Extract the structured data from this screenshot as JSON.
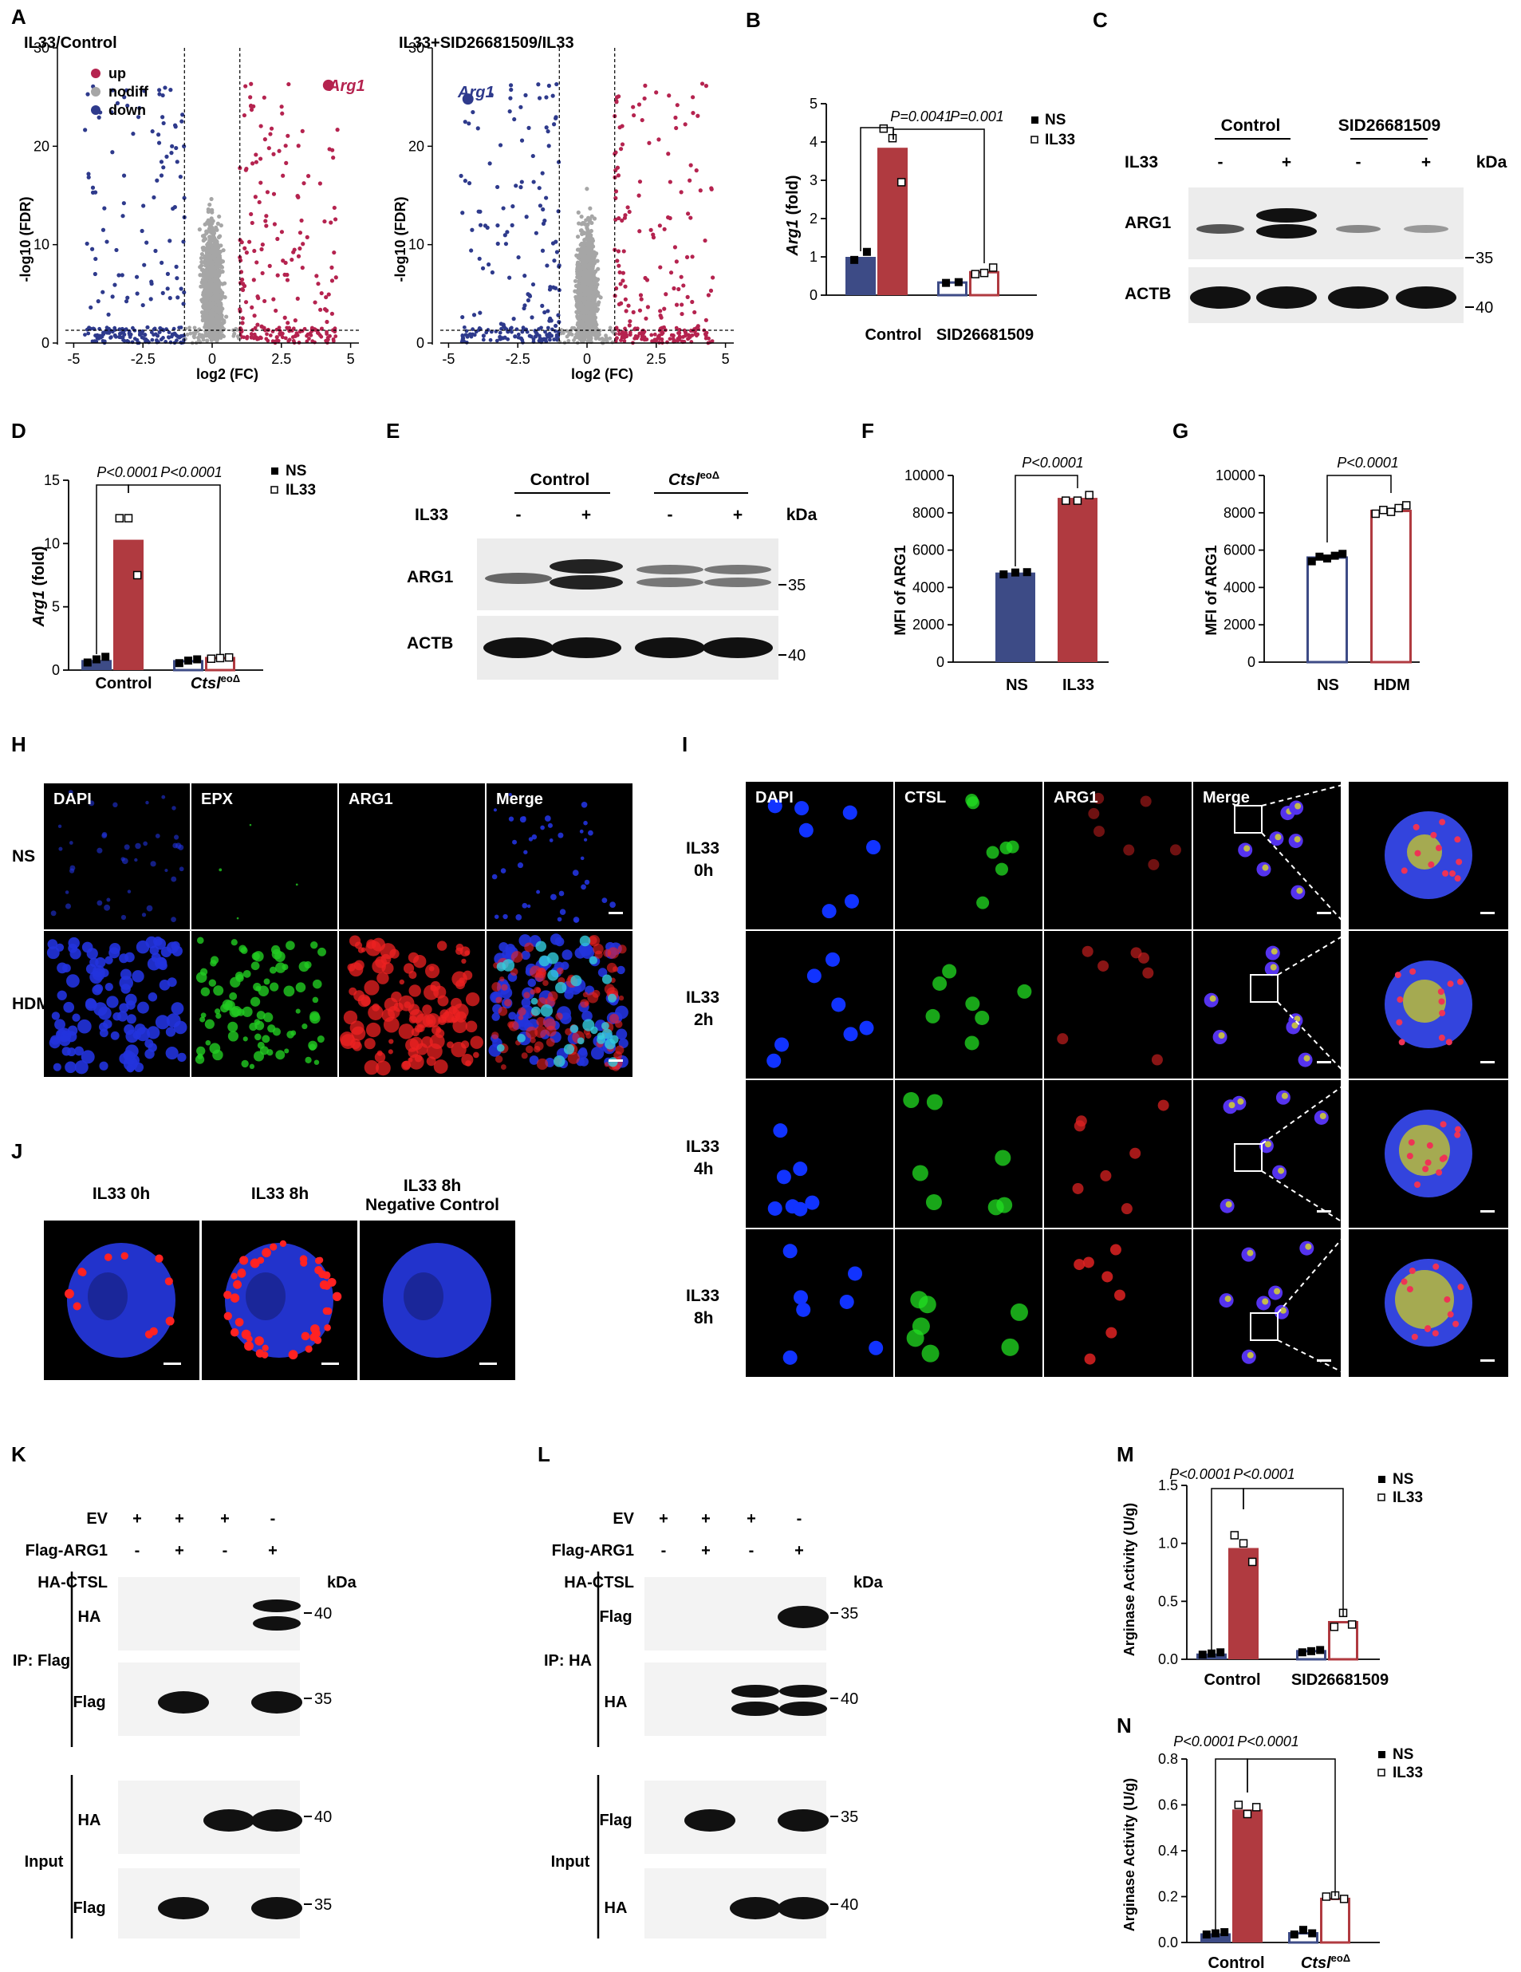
{
  "panels": {
    "A": {
      "label": "A",
      "left": {
        "title": "IL33/Control",
        "legend": [
          "up",
          "nodiff",
          "down"
        ],
        "gene": "Arg1"
      },
      "right": {
        "title": "IL33+SID26681509/IL33",
        "gene": "Arg1"
      },
      "xlabel": "log2 (FC)",
      "ylabel": "-log10 (FDR)",
      "xticks": [
        "-5",
        "-2.5",
        "0",
        "2.5",
        "5"
      ],
      "yticks": [
        "0",
        "10",
        "20",
        "30"
      ]
    },
    "B": {
      "label": "B",
      "ylabel_gene": "Arg1",
      "ylabel_rest": " (fold)",
      "yticks": [
        "0",
        "1",
        "2",
        "3",
        "4",
        "5"
      ],
      "p1": "P=0.0041",
      "p2": "P=0.001",
      "groups": [
        "Control",
        "SID26681509"
      ],
      "legend": [
        "NS",
        "IL33"
      ]
    },
    "C": {
      "label": "C",
      "groups": [
        "Control",
        "SID26681509"
      ],
      "il33": "IL33",
      "signs": [
        "-",
        "+",
        "-",
        "+"
      ],
      "kda": "kDa",
      "rows": [
        "ARG1",
        "ACTB"
      ],
      "markers": [
        "35",
        "40"
      ]
    },
    "D": {
      "label": "D",
      "ylabel_gene": "Arg1",
      "ylabel_rest": " (fold)",
      "yticks": [
        "0",
        "5",
        "10",
        "15"
      ],
      "p1": "P<0.0001",
      "p2": "P<0.0001",
      "group1": "Control",
      "group2_italic": "Ctsl",
      "group2_sup": "eoΔ",
      "legend": [
        "NS",
        "IL33"
      ]
    },
    "E": {
      "label": "E",
      "group1": "Control",
      "group2_italic": "Ctsl",
      "group2_sup": "eoΔ",
      "il33": "IL33",
      "signs": [
        "-",
        "+",
        "-",
        "+"
      ],
      "kda": "kDa",
      "rows": [
        "ARG1",
        "ACTB"
      ],
      "markers": [
        "35",
        "40"
      ]
    },
    "F": {
      "label": "F",
      "ylabel": "MFI of ARG1",
      "yticks": [
        "0",
        "2000",
        "4000",
        "6000",
        "8000",
        "10000"
      ],
      "p": "P<0.0001",
      "groups": [
        "NS",
        "IL33"
      ]
    },
    "G": {
      "label": "G",
      "ylabel": "MFI of ARG1",
      "yticks": [
        "0",
        "2000",
        "4000",
        "6000",
        "8000",
        "10000"
      ],
      "p": "P<0.0001",
      "groups": [
        "NS",
        "HDM"
      ]
    },
    "H": {
      "label": "H",
      "cols": [
        "DAPI",
        "EPX",
        "ARG1",
        "Merge"
      ],
      "rows": [
        "NS",
        "HDM"
      ]
    },
    "I": {
      "label": "I",
      "cols": [
        "DAPI",
        "CTSL",
        "ARG1",
        "Merge"
      ],
      "rows": [
        [
          "IL33",
          "0h"
        ],
        [
          "IL33",
          "2h"
        ],
        [
          "IL33",
          "4h"
        ],
        [
          "IL33",
          "8h"
        ]
      ]
    },
    "J": {
      "label": "J",
      "cols": [
        "IL33 0h",
        "IL33 8h",
        "IL33 8h"
      ],
      "col3_line2": "Negative Control"
    },
    "K": {
      "label": "K",
      "conditions": [
        "EV",
        "Flag-ARG1",
        "HA-CTSL"
      ],
      "signs": [
        [
          "+",
          "+",
          "+",
          "-"
        ],
        [
          "-",
          "+",
          "-",
          "+"
        ],
        [
          "-",
          "-",
          "+",
          "+"
        ]
      ],
      "kda": "kDa",
      "ip": "IP: Flag",
      "input": "Input",
      "rows": [
        "HA",
        "Flag",
        "HA",
        "Flag"
      ],
      "markers": [
        "40",
        "35",
        "40",
        "35"
      ]
    },
    "L": {
      "label": "L",
      "conditions": [
        "EV",
        "Flag-ARG1",
        "HA-CTSL"
      ],
      "signs": [
        [
          "+",
          "+",
          "+",
          "-"
        ],
        [
          "-",
          "+",
          "-",
          "+"
        ],
        [
          "-",
          "-",
          "+",
          "+"
        ]
      ],
      "kda": "kDa",
      "ip": "IP: HA",
      "input": "Input",
      "rows": [
        "Flag",
        "HA",
        "Flag",
        "HA"
      ],
      "markers": [
        "35",
        "40",
        "35",
        "40"
      ]
    },
    "M": {
      "label": "M",
      "ylabel": "Arginase Activity (U/g)",
      "yticks": [
        "0.0",
        "0.5",
        "1.0",
        "1.5"
      ],
      "p1": "P<0.0001",
      "p2": "P<0.0001",
      "groups": [
        "Control",
        "SID26681509"
      ],
      "legend": [
        "NS",
        "IL33"
      ]
    },
    "N": {
      "label": "N",
      "ylabel": "Arginase Activity (U/g)",
      "yticks": [
        "0.0",
        "0.2",
        "0.4",
        "0.6",
        "0.8"
      ],
      "p1": "P<0.0001",
      "p2": "P<0.0001",
      "group1": "Control",
      "group2_italic": "Ctsl",
      "group2_sup": "eoΔ",
      "legend": [
        "NS",
        "IL33"
      ]
    }
  },
  "colors": {
    "ns": "#3d4b86",
    "il33": "#b03a40",
    "up": "#b5234f",
    "down": "#2e3a8c",
    "nodiff": "#a6a6a6"
  },
  "chart_data": [
    {
      "type": "scatter",
      "panel": "A-left",
      "title": "IL33/Control",
      "xlabel": "log2 (FC)",
      "ylabel": "-log10 (FDR)",
      "xlim": [
        -5.3,
        5.3
      ],
      "ylim": [
        0,
        30
      ],
      "series": [
        {
          "name": "up"
        },
        {
          "name": "nodiff"
        },
        {
          "name": "down"
        }
      ],
      "highlight": {
        "label": "Arg1",
        "x": 4.2,
        "y": 26.2
      }
    },
    {
      "type": "scatter",
      "panel": "A-right",
      "title": "IL33+SID26681509/IL33",
      "xlabel": "log2 (FC)",
      "ylabel": "-log10 (FDR)",
      "xlim": [
        -5.3,
        5.3
      ],
      "ylim": [
        0,
        30
      ],
      "highlight": {
        "label": "Arg1",
        "x": -4.3,
        "y": 24.8
      }
    },
    {
      "type": "bar",
      "panel": "B",
      "categories": [
        "Control",
        "SID26681509"
      ],
      "ylim": [
        0,
        5
      ],
      "series": [
        {
          "name": "NS",
          "values": [
            1.0,
            0.33
          ],
          "points": [
            [
              0.92,
              1.13
            ],
            [
              0.32,
              0.34
            ]
          ]
        },
        {
          "name": "IL33",
          "values": [
            3.85,
            0.6
          ],
          "points": [
            [
              4.35,
              4.1,
              2.95
            ],
            [
              0.55,
              0.58,
              0.72
            ]
          ]
        }
      ]
    },
    {
      "type": "bar",
      "panel": "D",
      "categories": [
        "Control",
        "Ctsl eoΔ"
      ],
      "ylim": [
        0,
        15
      ],
      "series": [
        {
          "name": "NS",
          "values": [
            0.8,
            0.7
          ],
          "points": [
            [
              0.6,
              0.85,
              1.05
            ],
            [
              0.55,
              0.75,
              0.85
            ]
          ]
        },
        {
          "name": "IL33",
          "values": [
            10.3,
            0.95
          ],
          "points": [
            [
              12.0,
              12.0,
              7.5
            ],
            [
              0.9,
              0.95,
              1.0
            ]
          ]
        }
      ]
    },
    {
      "type": "bar",
      "panel": "F",
      "categories": [
        "NS",
        "IL33"
      ],
      "ylim": [
        0,
        10000
      ],
      "series": [
        {
          "name": "values",
          "values": [
            4800,
            8800
          ],
          "points": [
            [
              4700,
              4800,
              4820
            ],
            [
              8650,
              8650,
              8950
            ]
          ]
        }
      ]
    },
    {
      "type": "bar",
      "panel": "G",
      "categories": [
        "NS",
        "HDM"
      ],
      "ylim": [
        0,
        10000
      ],
      "series": [
        {
          "name": "values",
          "values": [
            5600,
            8100
          ],
          "points": [
            [
              5400,
              5650,
              5550,
              5700,
              5800
            ],
            [
              7950,
              8150,
              8050,
              8250,
              8400
            ]
          ]
        }
      ]
    },
    {
      "type": "bar",
      "panel": "M",
      "categories": [
        "Control",
        "SID26681509"
      ],
      "ylim": [
        0,
        1.5
      ],
      "series": [
        {
          "name": "NS",
          "values": [
            0.05,
            0.07
          ],
          "points": [
            [
              0.04,
              0.05,
              0.06
            ],
            [
              0.06,
              0.07,
              0.08
            ]
          ]
        },
        {
          "name": "IL33",
          "values": [
            0.96,
            0.32
          ],
          "points": [
            [
              1.07,
              1.0,
              0.84
            ],
            [
              0.28,
              0.4,
              0.3
            ]
          ]
        }
      ]
    },
    {
      "type": "bar",
      "panel": "N",
      "categories": [
        "Control",
        "Ctsl eoΔ"
      ],
      "ylim": [
        0,
        0.8
      ],
      "series": [
        {
          "name": "NS",
          "values": [
            0.04,
            0.04
          ],
          "points": [
            [
              0.035,
              0.04,
              0.045
            ],
            [
              0.035,
              0.055,
              0.04
            ]
          ]
        },
        {
          "name": "IL33",
          "values": [
            0.58,
            0.19
          ],
          "points": [
            [
              0.6,
              0.56,
              0.59
            ],
            [
              0.2,
              0.205,
              0.19
            ]
          ]
        }
      ]
    }
  ]
}
